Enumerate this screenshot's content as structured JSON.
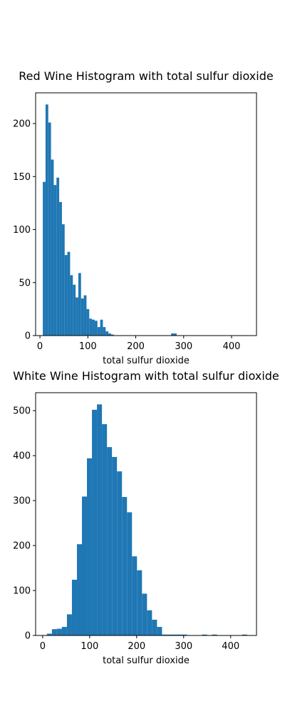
{
  "chart_data": [
    {
      "type": "bar",
      "title": "Red Wine Histogram with total sulfur dioxide",
      "xlabel": "total sulfur dioxide",
      "ylabel": "",
      "xlim": [
        -9,
        452
      ],
      "ylim": [
        0,
        229
      ],
      "xticks": [
        0,
        100,
        200,
        300,
        400
      ],
      "yticks": [
        0,
        50,
        100,
        150,
        200
      ],
      "bin_width": 5.7,
      "color": "#1f77b4",
      "bins": [
        {
          "x0": 6.0,
          "count": 145
        },
        {
          "x0": 11.7,
          "count": 218
        },
        {
          "x0": 17.4,
          "count": 201
        },
        {
          "x0": 23.1,
          "count": 166
        },
        {
          "x0": 28.8,
          "count": 142
        },
        {
          "x0": 34.5,
          "count": 149
        },
        {
          "x0": 40.2,
          "count": 126
        },
        {
          "x0": 45.9,
          "count": 105
        },
        {
          "x0": 51.6,
          "count": 76
        },
        {
          "x0": 57.3,
          "count": 79
        },
        {
          "x0": 63.0,
          "count": 57
        },
        {
          "x0": 68.7,
          "count": 48
        },
        {
          "x0": 74.4,
          "count": 36
        },
        {
          "x0": 80.1,
          "count": 59
        },
        {
          "x0": 85.8,
          "count": 35
        },
        {
          "x0": 91.5,
          "count": 38
        },
        {
          "x0": 97.2,
          "count": 25
        },
        {
          "x0": 102.9,
          "count": 16
        },
        {
          "x0": 108.6,
          "count": 15
        },
        {
          "x0": 114.3,
          "count": 14
        },
        {
          "x0": 120.0,
          "count": 8
        },
        {
          "x0": 125.7,
          "count": 15
        },
        {
          "x0": 131.4,
          "count": 8
        },
        {
          "x0": 137.1,
          "count": 4
        },
        {
          "x0": 142.8,
          "count": 2
        },
        {
          "x0": 148.5,
          "count": 1
        },
        {
          "x0": 273.9,
          "count": 2
        },
        {
          "x0": 279.6,
          "count": 2
        }
      ]
    },
    {
      "type": "bar",
      "title": "White Wine Histogram with total sulfur dioxide",
      "xlabel": "total sulfur dioxide",
      "ylabel": "",
      "xlim": [
        -15,
        455
      ],
      "ylim": [
        0,
        540
      ],
      "xticks": [
        0,
        100,
        200,
        300,
        400
      ],
      "yticks": [
        0,
        100,
        200,
        300,
        400,
        500
      ],
      "bin_width": 10.65,
      "color": "#1f77b4",
      "bins": [
        {
          "x0": 9.0,
          "count": 4
        },
        {
          "x0": 19.65,
          "count": 14
        },
        {
          "x0": 30.3,
          "count": 15
        },
        {
          "x0": 40.95,
          "count": 19
        },
        {
          "x0": 51.6,
          "count": 47
        },
        {
          "x0": 62.25,
          "count": 124
        },
        {
          "x0": 72.9,
          "count": 203
        },
        {
          "x0": 83.55,
          "count": 309
        },
        {
          "x0": 94.2,
          "count": 394
        },
        {
          "x0": 104.85,
          "count": 502
        },
        {
          "x0": 115.5,
          "count": 514
        },
        {
          "x0": 126.15,
          "count": 470
        },
        {
          "x0": 136.8,
          "count": 419
        },
        {
          "x0": 147.45,
          "count": 397
        },
        {
          "x0": 158.1,
          "count": 365
        },
        {
          "x0": 168.75,
          "count": 308
        },
        {
          "x0": 179.4,
          "count": 274
        },
        {
          "x0": 190.05,
          "count": 176
        },
        {
          "x0": 200.7,
          "count": 145
        },
        {
          "x0": 211.35,
          "count": 93
        },
        {
          "x0": 222.0,
          "count": 56
        },
        {
          "x0": 232.65,
          "count": 35
        },
        {
          "x0": 243.3,
          "count": 19
        },
        {
          "x0": 253.95,
          "count": 2
        },
        {
          "x0": 264.6,
          "count": 2
        },
        {
          "x0": 275.25,
          "count": 2
        },
        {
          "x0": 285.9,
          "count": 2
        },
        {
          "x0": 296.55,
          "count": 2
        },
        {
          "x0": 339.15,
          "count": 2
        },
        {
          "x0": 360.45,
          "count": 2
        },
        {
          "x0": 424.35,
          "count": 2
        }
      ]
    }
  ]
}
